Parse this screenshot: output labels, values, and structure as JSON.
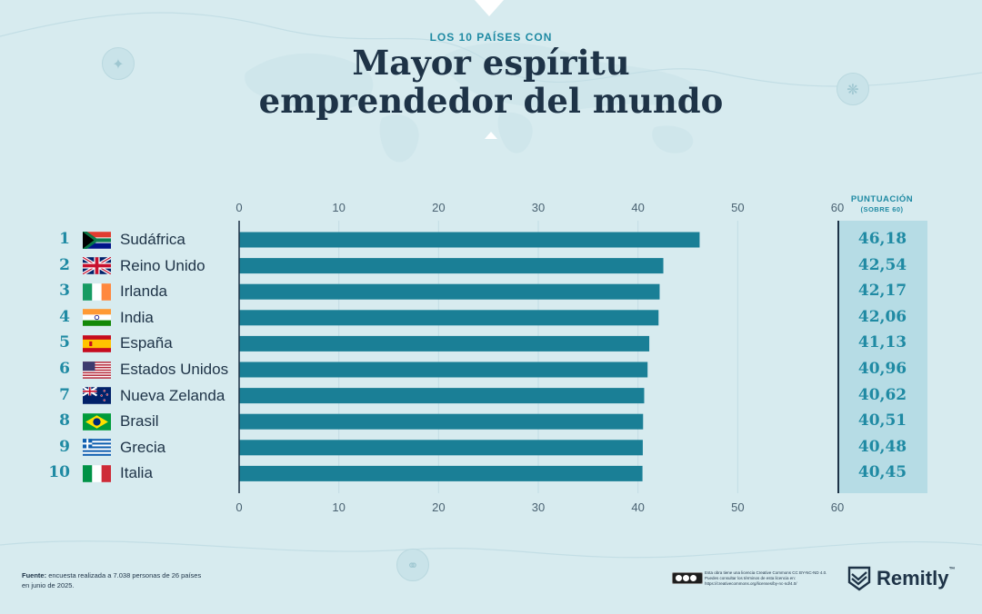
{
  "header": {
    "kicker": "LOS 10 PAÍSES CON",
    "title_line1": "Mayor espíritu",
    "title_line2": "emprendedor del mundo"
  },
  "score_column": {
    "title": "PUNTUACIÓN",
    "subtitle": "(SOBRE 60)"
  },
  "chart_data": {
    "type": "bar",
    "orientation": "horizontal",
    "title": "Mayor espíritu emprendedor del mundo",
    "xlim": [
      0,
      60
    ],
    "xticks": [
      "0",
      "10",
      "20",
      "30",
      "40",
      "50",
      "60"
    ],
    "grid": true,
    "bar_color": "#1a7f96",
    "categories": [
      "Sudáfrica",
      "Reino Unido",
      "Irlanda",
      "India",
      "España",
      "Estados Unidos",
      "Nueva Zelanda",
      "Brasil",
      "Grecia",
      "Italia"
    ],
    "ranks": [
      "1",
      "2",
      "3",
      "4",
      "5",
      "6",
      "7",
      "8",
      "9",
      "10"
    ],
    "flags": [
      "flag-za-icon",
      "flag-gb-icon",
      "flag-ie-icon",
      "flag-in-icon",
      "flag-es-icon",
      "flag-us-icon",
      "flag-nz-icon",
      "flag-br-icon",
      "flag-gr-icon",
      "flag-it-icon"
    ],
    "values": [
      46.18,
      42.54,
      42.17,
      42.06,
      41.13,
      40.96,
      40.62,
      40.51,
      40.48,
      40.45
    ],
    "value_labels": [
      "46,18",
      "42,54",
      "42,17",
      "42,06",
      "41,13",
      "40,96",
      "40,62",
      "40,51",
      "40,48",
      "40,45"
    ]
  },
  "footer": {
    "source_label": "Fuente:",
    "source_text": "encuesta realizada a 7.038 personas de 26 países en junio de 2025.",
    "license_text": "Esta obra tiene una licencia Creative Commons CC BY-NC-ND 4.0. Puedes consultar los términos de esta licencia en: https://creativecommons.org/licenses/by-nc-nd/4.0/",
    "brand": "Remitly",
    "brand_tm": "™"
  },
  "colors": {
    "background": "#d7ebef",
    "bar": "#1a7f96",
    "accent": "#1f8aa3",
    "ink": "#1e3347",
    "score_panel": "#b6dce5"
  }
}
